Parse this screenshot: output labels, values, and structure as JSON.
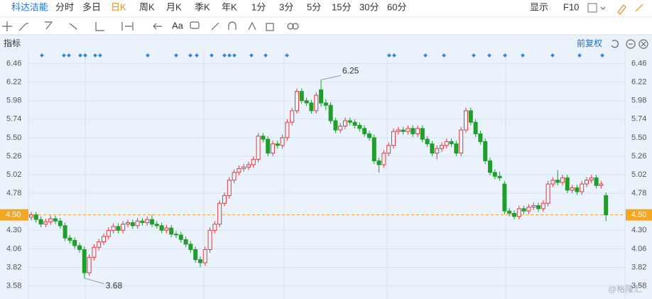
{
  "toolbar": {
    "tabs": [
      "科达洁能",
      "分时",
      "多日",
      "日K",
      "周K",
      "月K",
      "季K",
      "年K",
      "1分",
      "3分",
      "5分",
      "15分",
      "30分",
      "60分"
    ],
    "display": "显示",
    "f10": "F10",
    "text_tool": "Aa"
  },
  "indicator_label": "指标",
  "adjust": "前复权",
  "watermark": "@格隆汇",
  "chart_data": {
    "type": "candlestick",
    "ylim": [
      3.41,
      6.64
    ],
    "yticks": [
      3.58,
      3.82,
      4.06,
      {
        "value": 4.3,
        "label": "4.30"
      },
      4.78,
      5.02,
      5.26,
      {
        "value": 5.5,
        "label": "5.50"
      },
      5.74,
      5.98,
      6.22,
      6.46
    ],
    "current_price": {
      "value": 4.5,
      "label": "4.50"
    },
    "high_label": 6.25,
    "low_label": 3.68,
    "up_color": "#e4393c",
    "down_color": "#1e9e2a",
    "grid": true,
    "ohlc": [
      [
        4.47,
        4.54,
        4.43,
        4.5
      ],
      [
        4.5,
        4.54,
        4.4,
        4.44
      ],
      [
        4.44,
        4.48,
        4.34,
        4.38
      ],
      [
        4.38,
        4.45,
        4.34,
        4.41
      ],
      [
        4.41,
        4.49,
        4.37,
        4.45
      ],
      [
        4.45,
        4.49,
        4.38,
        4.42
      ],
      [
        4.42,
        4.46,
        4.32,
        4.36
      ],
      [
        4.36,
        4.4,
        4.16,
        4.2
      ],
      [
        4.2,
        4.24,
        4.13,
        4.17
      ],
      [
        4.17,
        4.21,
        4.06,
        4.1
      ],
      [
        4.1,
        4.14,
        4.01,
        4.05
      ],
      [
        4.05,
        4.09,
        3.68,
        3.75
      ],
      [
        3.75,
        3.99,
        3.71,
        3.95
      ],
      [
        3.95,
        4.12,
        3.91,
        4.08
      ],
      [
        4.08,
        4.19,
        4.04,
        4.15
      ],
      [
        4.15,
        4.26,
        4.11,
        4.22
      ],
      [
        4.22,
        4.34,
        4.18,
        4.3
      ],
      [
        4.3,
        4.39,
        4.26,
        4.35
      ],
      [
        4.35,
        4.39,
        4.26,
        4.3
      ],
      [
        4.3,
        4.42,
        4.26,
        4.38
      ],
      [
        4.38,
        4.44,
        4.34,
        4.4
      ],
      [
        4.4,
        4.44,
        4.32,
        4.36
      ],
      [
        4.36,
        4.46,
        4.32,
        4.42
      ],
      [
        4.42,
        4.46,
        4.36,
        4.4
      ],
      [
        4.4,
        4.48,
        4.36,
        4.44
      ],
      [
        4.44,
        4.5,
        4.34,
        4.38
      ],
      [
        4.38,
        4.42,
        4.32,
        4.36
      ],
      [
        4.36,
        4.4,
        4.26,
        4.3
      ],
      [
        4.3,
        4.37,
        4.26,
        4.33
      ],
      [
        4.33,
        4.37,
        4.21,
        4.25
      ],
      [
        4.25,
        4.29,
        4.2,
        4.24
      ],
      [
        4.24,
        4.28,
        4.14,
        4.18
      ],
      [
        4.18,
        4.22,
        4.08,
        4.12
      ],
      [
        4.12,
        4.16,
        4.01,
        4.05
      ],
      [
        4.05,
        4.09,
        3.88,
        3.92
      ],
      [
        3.92,
        3.96,
        3.82,
        3.88
      ],
      [
        3.88,
        4.09,
        3.84,
        4.05
      ],
      [
        4.05,
        4.34,
        4.01,
        4.3
      ],
      [
        4.3,
        4.42,
        4.26,
        4.38
      ],
      [
        4.38,
        4.69,
        4.34,
        4.65
      ],
      [
        4.65,
        4.79,
        4.61,
        4.75
      ],
      [
        4.75,
        4.99,
        4.71,
        4.95
      ],
      [
        4.95,
        5.09,
        4.91,
        5.05
      ],
      [
        5.05,
        5.14,
        5.01,
        5.1
      ],
      [
        5.1,
        5.16,
        5.06,
        5.12
      ],
      [
        5.12,
        5.19,
        5.08,
        5.15
      ],
      [
        5.15,
        5.26,
        5.11,
        5.22
      ],
      [
        5.22,
        5.56,
        5.18,
        5.52
      ],
      [
        5.52,
        5.56,
        5.44,
        5.48
      ],
      [
        5.48,
        5.52,
        5.26,
        5.3
      ],
      [
        5.3,
        5.46,
        5.26,
        5.42
      ],
      [
        5.42,
        5.46,
        5.36,
        5.4
      ],
      [
        5.4,
        5.54,
        5.36,
        5.5
      ],
      [
        5.5,
        5.74,
        5.46,
        5.7
      ],
      [
        5.7,
        5.89,
        5.66,
        5.85
      ],
      [
        5.85,
        6.14,
        5.81,
        6.1
      ],
      [
        6.1,
        6.14,
        5.94,
        5.98
      ],
      [
        5.98,
        6.02,
        5.91,
        5.95
      ],
      [
        5.95,
        5.99,
        5.81,
        5.85
      ],
      [
        5.85,
        6.09,
        5.81,
        6.05
      ],
      [
        6.12,
        6.25,
        5.9,
        5.95
      ],
      [
        5.95,
        6.0,
        5.86,
        5.92
      ],
      [
        5.92,
        5.96,
        5.68,
        5.72
      ],
      [
        5.72,
        5.76,
        5.56,
        5.6
      ],
      [
        5.6,
        5.69,
        5.56,
        5.65
      ],
      [
        5.65,
        5.76,
        5.61,
        5.72
      ],
      [
        5.72,
        5.76,
        5.66,
        5.7
      ],
      [
        5.7,
        5.74,
        5.62,
        5.66
      ],
      [
        5.66,
        5.7,
        5.58,
        5.62
      ],
      [
        5.62,
        5.66,
        5.51,
        5.55
      ],
      [
        5.55,
        5.59,
        5.46,
        5.5
      ],
      [
        5.5,
        5.54,
        5.16,
        5.2
      ],
      [
        5.2,
        5.24,
        5.05,
        5.15
      ],
      [
        5.15,
        5.34,
        5.11,
        5.3
      ],
      [
        5.3,
        5.44,
        5.26,
        5.4
      ],
      [
        5.4,
        5.62,
        5.36,
        5.58
      ],
      [
        5.58,
        5.64,
        5.54,
        5.6
      ],
      [
        5.6,
        5.64,
        5.54,
        5.58
      ],
      [
        5.58,
        5.66,
        5.54,
        5.62
      ],
      [
        5.62,
        5.66,
        5.51,
        5.55
      ],
      [
        5.55,
        5.66,
        5.51,
        5.62
      ],
      [
        5.62,
        5.66,
        5.44,
        5.48
      ],
      [
        5.48,
        5.52,
        5.38,
        5.42
      ],
      [
        5.42,
        5.46,
        5.26,
        5.3
      ],
      [
        5.3,
        5.4,
        5.22,
        5.36
      ],
      [
        5.36,
        5.44,
        5.32,
        5.4
      ],
      [
        5.4,
        5.49,
        5.36,
        5.45
      ],
      [
        5.45,
        5.49,
        5.38,
        5.42
      ],
      [
        5.42,
        5.46,
        5.26,
        5.3
      ],
      [
        5.3,
        5.64,
        5.26,
        5.6
      ],
      [
        5.6,
        5.89,
        5.56,
        5.85
      ],
      [
        5.85,
        5.89,
        5.66,
        5.7
      ],
      [
        5.7,
        5.74,
        5.51,
        5.55
      ],
      [
        5.55,
        5.59,
        5.41,
        5.45
      ],
      [
        5.45,
        5.49,
        5.16,
        5.2
      ],
      [
        5.2,
        5.24,
        5.01,
        5.05
      ],
      [
        5.05,
        5.09,
        4.96,
        5.0
      ],
      [
        5.0,
        5.06,
        4.94,
        4.98
      ],
      [
        4.9,
        4.94,
        4.51,
        4.55
      ],
      [
        4.55,
        4.59,
        4.48,
        4.52
      ],
      [
        4.52,
        4.56,
        4.44,
        4.48
      ],
      [
        4.48,
        4.62,
        4.44,
        4.58
      ],
      [
        4.58,
        4.62,
        4.51,
        4.55
      ],
      [
        4.55,
        4.64,
        4.51,
        4.6
      ],
      [
        4.6,
        4.66,
        4.56,
        4.62
      ],
      [
        4.62,
        4.66,
        4.54,
        4.58
      ],
      [
        4.58,
        4.69,
        4.54,
        4.65
      ],
      [
        4.65,
        4.94,
        4.61,
        4.9
      ],
      [
        4.9,
        4.99,
        4.86,
        4.95
      ],
      [
        4.95,
        5.08,
        4.88,
        4.92
      ],
      [
        4.92,
        5.02,
        4.88,
        4.98
      ],
      [
        4.98,
        5.02,
        4.78,
        4.82
      ],
      [
        4.82,
        4.89,
        4.78,
        4.85
      ],
      [
        4.85,
        4.89,
        4.76,
        4.8
      ],
      [
        4.8,
        4.94,
        4.76,
        4.9
      ],
      [
        4.9,
        4.99,
        4.86,
        4.95
      ],
      [
        4.95,
        5.02,
        4.91,
        4.98
      ],
      [
        4.98,
        5.02,
        4.84,
        4.88
      ],
      [
        4.88,
        4.94,
        4.84,
        4.9
      ],
      [
        4.75,
        4.79,
        4.42,
        4.5
      ]
    ]
  }
}
